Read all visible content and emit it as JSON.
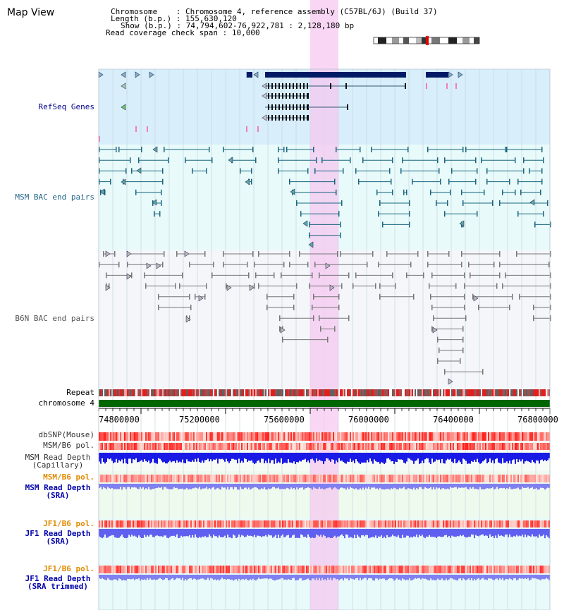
{
  "view_title": "Map View",
  "info": {
    "chromosome_label": "Chromosome",
    "chromosome_value": "Chromosome 4, reference assembly (C57BL/6J) (Build 37)",
    "length_label": "Length (b.p.)",
    "length_value": "155,630,120",
    "show_label": "Show (b.p.)",
    "show_value": "74,794,602-76,922,781 : 2,128,180 bp",
    "read_span_label": "Read coverage check span",
    "read_span_value": "10,000"
  },
  "tracks": {
    "refseq": "RefSeq Genes",
    "msm_bac": "MSM BAC end pairs",
    "b6n_bac": "B6N BAC end pairs",
    "repeat": "Repeat",
    "chromosome": "chromosome 4",
    "dbsnp": "dbSNP(Mouse)",
    "msm_b6_pol": "MSM/B6 pol.",
    "msm_depth_cap_1": "MSM Read Depth",
    "msm_depth_cap_2": "(Capillary)",
    "msm_b6_pol_sra": "MSM/B6 pol.",
    "msm_depth_sra_1": "MSM Read Depth",
    "msm_depth_sra_2": "(SRA)",
    "jf1_b6_pol": "JF1/B6 pol.",
    "jf1_depth_sra_1": "JF1 Read Depth",
    "jf1_depth_sra_2": "(SRA)",
    "jf1_b6_pol_trim": "JF1/B6 pol.",
    "jf1_depth_trim_1": "JF1 Read Depth",
    "jf1_depth_trim_2": "(SRA trimmed)"
  },
  "axis_ticks": [
    "74800000",
    "75200000",
    "75600000",
    "76000000",
    "76400000",
    "76800000"
  ],
  "colors": {
    "refseq_bg": "#d8eefa",
    "msm_bg": "#e8fafa",
    "b6n_bg": "#f4f6fa",
    "highlight": "#f5c8f0",
    "chromosome_bar": "#006600",
    "gene_dark": "#001a66",
    "msm_feature": "#1a6680",
    "b6n_feature": "#777777",
    "depth_blue": "#1a1ae6",
    "depth_light": "#8080f0",
    "label_navy": "#00008b",
    "label_orange": "#e08a00",
    "label_teal": "#226688"
  }
}
